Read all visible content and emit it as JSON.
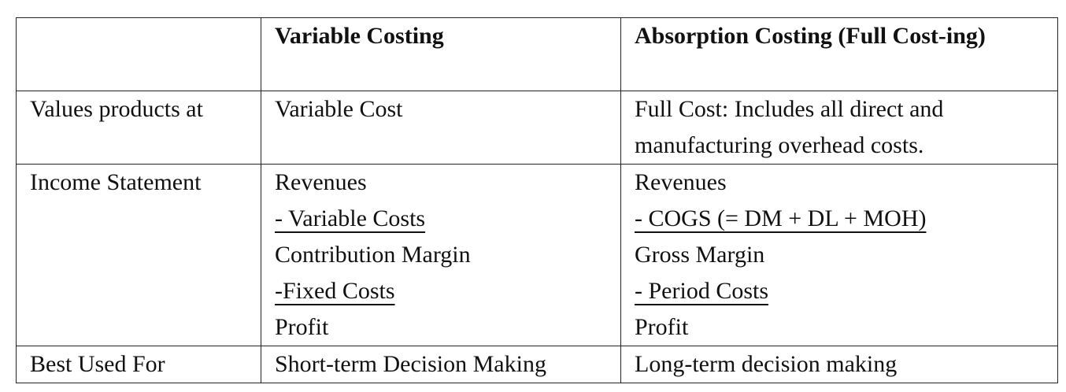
{
  "table": {
    "header": [
      "Variable Costing",
      "Absorption Costing (Full Cost-ing)"
    ],
    "rows": [
      {
        "label": "Values products at",
        "variable": [
          "Variable Cost"
        ],
        "absorption": [
          "Full Cost: Includes all direct and manufacturing overhead costs."
        ]
      },
      {
        "label": "Income Statement",
        "variable": [
          "Revenues",
          "- Variable Costs",
          "Contribution Margin",
          "-Fixed Costs",
          "Profit"
        ],
        "absorption": [
          "Revenues",
          "- COGS (= DM + DL + MOH)",
          "Gross Margin",
          "- Period Costs",
          "Profit"
        ]
      },
      {
        "label": "Best Used For",
        "variable": [
          "Short-term Decision Making"
        ],
        "absorption": [
          "Long-term decision making"
        ]
      }
    ]
  }
}
